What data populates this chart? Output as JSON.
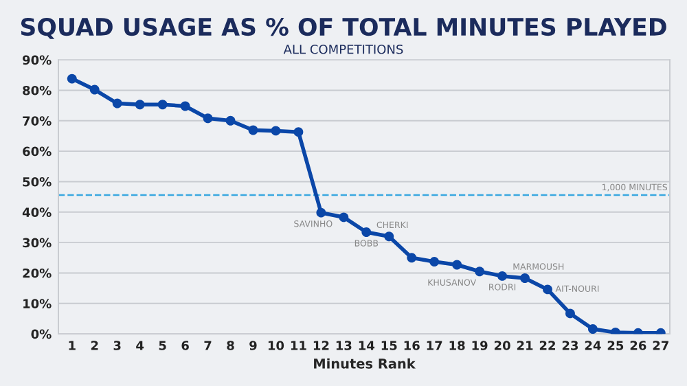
{
  "chart_data": {
    "type": "line",
    "title": "SQUAD USAGE AS % OF TOTAL MINUTES PLAYED",
    "subtitle": "ALL COMPETITIONS",
    "xlabel": "Minutes Rank",
    "categories": [
      "1",
      "2",
      "3",
      "4",
      "5",
      "6",
      "7",
      "8",
      "9",
      "10",
      "11",
      "12",
      "13",
      "14",
      "15",
      "16",
      "17",
      "18",
      "19",
      "20",
      "21",
      "22",
      "23",
      "24",
      "25",
      "26",
      "27"
    ],
    "series": [
      {
        "color": "#0b47a8",
        "values": [
          83.8,
          80.2,
          75.7,
          75.3,
          75.3,
          74.8,
          70.8,
          70,
          66.9,
          66.7,
          66.3,
          39.8,
          38.3,
          33.4,
          32,
          25,
          23.7,
          22.7,
          20.5,
          19,
          18.3,
          14.6,
          6.7,
          1.6,
          0.5,
          0.3,
          0.3
        ]
      }
    ],
    "ylim": [
      0,
      90
    ],
    "yticks": [
      {
        "value": 0,
        "label": "0%"
      },
      {
        "value": 10,
        "label": "10%"
      },
      {
        "value": 20,
        "label": "20%"
      },
      {
        "value": 30,
        "label": "30%"
      },
      {
        "value": 40,
        "label": "40%"
      },
      {
        "value": 50,
        "label": "50%"
      },
      {
        "value": 60,
        "label": "60%"
      },
      {
        "value": 70,
        "label": "70%"
      },
      {
        "value": 80,
        "label": "80%"
      },
      {
        "value": 90,
        "label": "90%"
      }
    ],
    "grid": "y",
    "marker": "circle",
    "line_style": "solid",
    "legend": false,
    "ref_lines": [
      {
        "axis": "y",
        "value": 45.6,
        "label": "1,000 MINUTES",
        "color": "#3aa8e0",
        "line_style": "dashed"
      }
    ],
    "annotations": [
      {
        "text": "SAVINHO",
        "x": "12",
        "y": 39.8
      },
      {
        "text": "BOBB",
        "x": "14",
        "y": 33.4
      },
      {
        "text": "CHERKI",
        "x": "15",
        "y": 32
      },
      {
        "text": "KHUSANOV",
        "x": "19",
        "y": 20.5
      },
      {
        "text": "RODRI",
        "x": "20",
        "y": 19
      },
      {
        "text": "MARMOUSH",
        "x": "21",
        "y": 18.3
      },
      {
        "text": "AIT-NOURI",
        "x": "22",
        "y": 14.6
      }
    ]
  }
}
